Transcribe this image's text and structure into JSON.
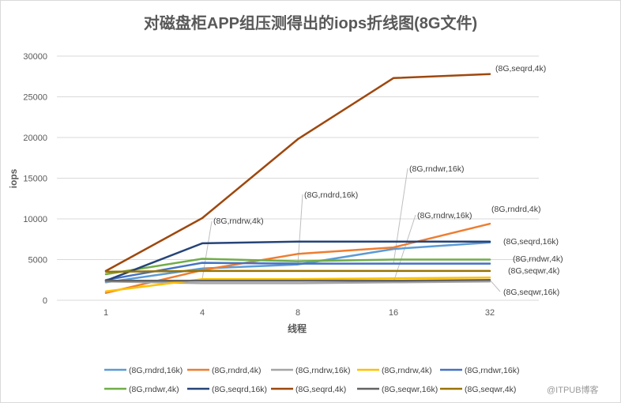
{
  "chart_data": {
    "type": "line",
    "title": "对磁盘柜APP组压测得出的iops折线图(8G文件)",
    "xlabel": "线程",
    "ylabel": "iops",
    "categories": [
      "1",
      "4",
      "8",
      "16",
      "32"
    ],
    "ylim": [
      0,
      30000
    ],
    "yticks": [
      "0",
      "5000",
      "10000",
      "15000",
      "20000",
      "25000",
      "30000"
    ],
    "grid": true,
    "legend_position": "bottom",
    "series": [
      {
        "name": "(8G,rndrd,16k)",
        "color": "#5B9BD5",
        "values": [
          2200,
          3900,
          4400,
          6300,
          7100
        ]
      },
      {
        "name": "(8G,rndrd,4k)",
        "color": "#ED7D31",
        "values": [
          900,
          3700,
          5700,
          6500,
          9400
        ]
      },
      {
        "name": "(8G,rndrw,16k)",
        "color": "#A5A5A5",
        "values": [
          2300,
          2100,
          2100,
          2200,
          2300
        ]
      },
      {
        "name": "(8G,rndrw,4k)",
        "color": "#FFC000",
        "values": [
          1100,
          2600,
          2600,
          2700,
          2800
        ]
      },
      {
        "name": "(8G,rndwr,16k)",
        "color": "#4472C4",
        "values": [
          2500,
          4600,
          4500,
          4500,
          4500
        ]
      },
      {
        "name": "(8G,rndwr,4k)",
        "color": "#70AD47",
        "values": [
          3200,
          5100,
          4800,
          5000,
          5000
        ]
      },
      {
        "name": "(8G,seqrd,16k)",
        "color": "#264478",
        "values": [
          2400,
          7000,
          7200,
          7200,
          7200
        ]
      },
      {
        "name": "(8G,seqrd,4k)",
        "color": "#9E480E",
        "values": [
          3600,
          10100,
          19800,
          27300,
          27800
        ]
      },
      {
        "name": "(8G,seqwr,16k)",
        "color": "#636363",
        "values": [
          2400,
          2400,
          2400,
          2400,
          2500
        ]
      },
      {
        "name": "(8G,seqwr,4k)",
        "color": "#997300",
        "values": [
          3500,
          3600,
          3600,
          3600,
          3600
        ]
      }
    ],
    "annotations": [
      {
        "text": "(8G,seqrd,4k)",
        "series": 7,
        "point": 4
      },
      {
        "text": "(8G,rndwr,16k)",
        "series": 4,
        "point": 3
      },
      {
        "text": "(8G,rndrd,16k)",
        "series": 0,
        "point": 2
      },
      {
        "text": "(8G,rndrw,4k)",
        "series": 3,
        "point": 1
      },
      {
        "text": "(8G,rndrw,16k)",
        "series": 2,
        "point": 3
      },
      {
        "text": "(8G,rndrd,4k)",
        "series": 1,
        "point": 4
      },
      {
        "text": "(8G,seqrd,16k)",
        "series": 6,
        "point": 4
      },
      {
        "text": "(8G,rndwr,4k)",
        "series": 5,
        "point": 4
      },
      {
        "text": "(8G,seqwr,4k)",
        "series": 9,
        "point": 4
      },
      {
        "text": "(8G,seqwr,16k)",
        "series": 8,
        "point": 4
      }
    ]
  },
  "watermark": "@ITPUB博客"
}
